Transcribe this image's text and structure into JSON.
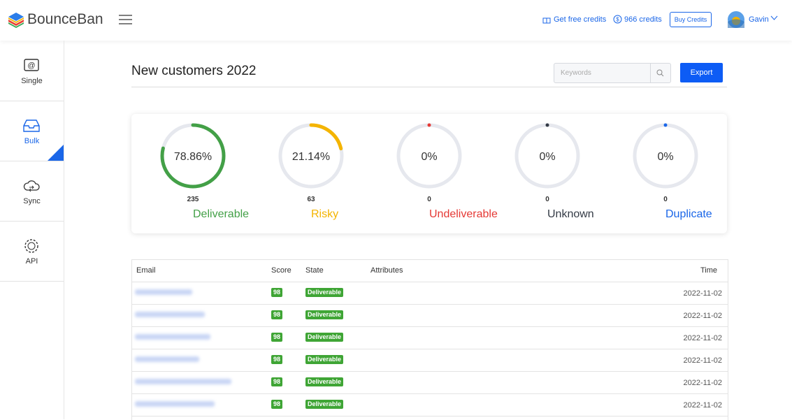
{
  "header": {
    "brand": "BounceBan",
    "free_credits": "Get free credits",
    "credits": "966 credits",
    "buy": "Buy Credits",
    "user": "Gavin"
  },
  "sidebar": [
    "Single",
    "Bulk",
    "Sync",
    "API"
  ],
  "page": {
    "title": "New customers 2022",
    "search_placeholder": "Keywords",
    "export": "Export"
  },
  "stats": [
    {
      "percent": 78.86,
      "percent_label": "78.86%",
      "count": 235,
      "label": "Deliverable",
      "color": "#43a047"
    },
    {
      "percent": 21.14,
      "percent_label": "21.14%",
      "count": 63,
      "label": "Risky",
      "color": "#f4b400"
    },
    {
      "percent": 0,
      "percent_label": "0%",
      "count": 0,
      "label": "Undeliverable",
      "color": "#e53935"
    },
    {
      "percent": 0,
      "percent_label": "0%",
      "count": 0,
      "label": "Unknown",
      "color": "#333a45"
    },
    {
      "percent": 0,
      "percent_label": "0%",
      "count": 0,
      "label": "Duplicate",
      "color": "#1a66e8"
    }
  ],
  "table": {
    "columns": [
      "Email",
      "Score",
      "State",
      "Attributes",
      "Time"
    ],
    "rows": [
      [
        "98",
        "Deliverable",
        "2022-11-02"
      ],
      [
        "98",
        "Deliverable",
        "2022-11-02"
      ],
      [
        "98",
        "Deliverable",
        "2022-11-02"
      ],
      [
        "98",
        "Deliverable",
        "2022-11-02"
      ],
      [
        "98",
        "Deliverable",
        "2022-11-02"
      ],
      [
        "98",
        "Deliverable",
        "2022-11-02"
      ]
    ]
  }
}
